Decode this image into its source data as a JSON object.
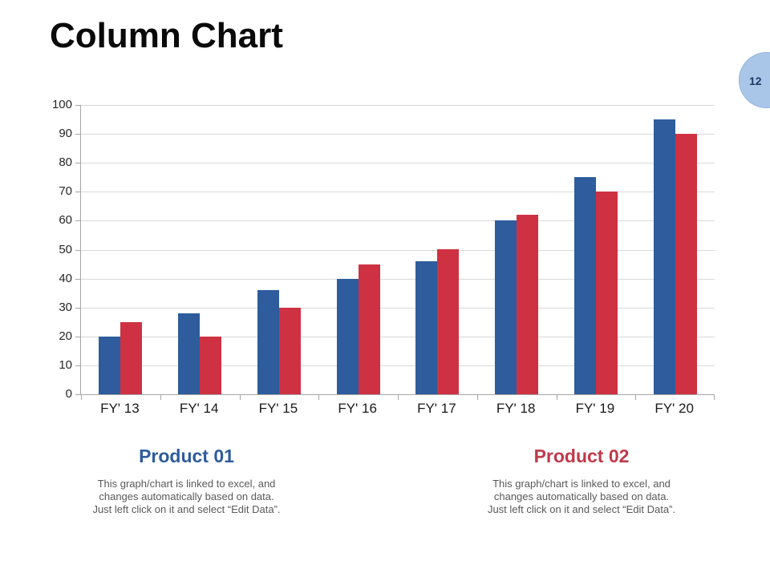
{
  "slide": {
    "title": "Column Chart",
    "badge": {
      "number": "12",
      "fill_color": "#a9c6e8",
      "text_color": "#1f3864"
    }
  },
  "chart_data": {
    "type": "bar",
    "title": "",
    "categories": [
      "FY' 13",
      "FY' 14",
      "FY' 15",
      "FY' 16",
      "FY' 17",
      "FY' 18",
      "FY' 19",
      "FY' 20"
    ],
    "series": [
      {
        "name": "Product 01",
        "color": "#2e5c9c",
        "values": [
          20,
          28,
          36,
          40,
          46,
          60,
          75,
          95
        ]
      },
      {
        "name": "Product 02",
        "color": "#ce3242",
        "values": [
          25,
          20,
          30,
          45,
          50,
          62,
          70,
          90
        ]
      }
    ],
    "xlabel": "",
    "ylabel": "",
    "ylim": [
      0,
      100
    ],
    "ytick_step": 10,
    "grid": "horizontal",
    "gridline_color": "#d9d9d9",
    "axis_line_color": "#a6a6a6",
    "legend_position": "below-chart"
  },
  "legend": {
    "items": [
      {
        "label": "Product 01",
        "color": "#2e5c9c",
        "desc_lines": [
          "This graph/chart is linked to excel, and",
          "changes automatically based on data.",
          "Just left click on it and select “Edit Data”."
        ]
      },
      {
        "label": "Product 02",
        "color": "#c0394b",
        "desc_lines": [
          "This graph/chart is linked to excel, and",
          "changes automatically based on data.",
          "Just left click on it and select “Edit Data”."
        ]
      }
    ]
  }
}
